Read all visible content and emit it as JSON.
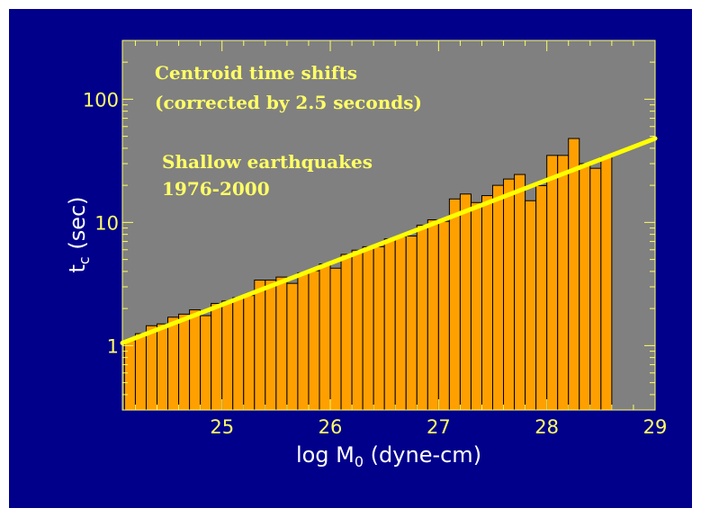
{
  "colors": {
    "frame": "#00008b",
    "plot_bg": "#808080",
    "bar_fill": "#ffa000",
    "bar_edge": "#000000",
    "fit_line": "#ffff00",
    "axes": "#ffff66",
    "axis_title": "#ffffff",
    "annotation": "#ffff66"
  },
  "chart_data": {
    "type": "bar",
    "title": "",
    "xlabel": "log M0 (dyne-cm)",
    "xlabel_parts": {
      "main": "log M",
      "sub": "0",
      "tail": " (dyne-cm)"
    },
    "ylabel": "tc (sec)",
    "ylabel_parts": {
      "main": "t",
      "sub": "c",
      "tail": " (sec)"
    },
    "x_scale": "linear",
    "y_scale": "log",
    "xlim": [
      24.08,
      29.0
    ],
    "ylim": [
      0.3,
      300
    ],
    "x_ticks": [
      "25",
      "26",
      "27",
      "28",
      "29"
    ],
    "y_ticks": [
      "1",
      "10",
      "100"
    ],
    "grid": false,
    "legend": "none",
    "bin_width": 0.1,
    "bin_starts": [
      24.1,
      24.2,
      24.3,
      24.4,
      24.5,
      24.6,
      24.7,
      24.8,
      24.9,
      25.0,
      25.1,
      25.2,
      25.3,
      25.4,
      25.5,
      25.6,
      25.7,
      25.8,
      25.9,
      26.0,
      26.1,
      26.2,
      26.3,
      26.4,
      26.5,
      26.6,
      26.7,
      26.8,
      26.9,
      27.0,
      27.1,
      27.2,
      27.3,
      27.4,
      27.5,
      27.6,
      27.7,
      27.8,
      27.9,
      28.0,
      28.1,
      28.2,
      28.3,
      28.4,
      28.5
    ],
    "values": [
      1.1,
      1.25,
      1.45,
      1.5,
      1.7,
      1.8,
      1.95,
      1.75,
      2.2,
      2.3,
      2.45,
      2.55,
      3.4,
      3.4,
      3.6,
      3.2,
      3.9,
      4.05,
      4.6,
      4.25,
      5.5,
      5.95,
      6.35,
      6.35,
      7.35,
      7.65,
      7.75,
      9.5,
      10.5,
      10.2,
      15.5,
      17.0,
      14.5,
      16.5,
      20.0,
      22.5,
      24.5,
      15.0,
      19.9,
      35.0,
      35.0,
      48.0,
      30.0,
      27.5,
      34.0
    ],
    "fit_line": {
      "x": [
        24.08,
        29.0
      ],
      "y": [
        1.05,
        48.0
      ]
    },
    "annotations": [
      {
        "lines": [
          "Centroid time shifts",
          "(corrected by 2.5 seconds)"
        ]
      },
      {
        "lines": [
          "Shallow earthquakes",
          "1976-2000"
        ]
      }
    ]
  }
}
